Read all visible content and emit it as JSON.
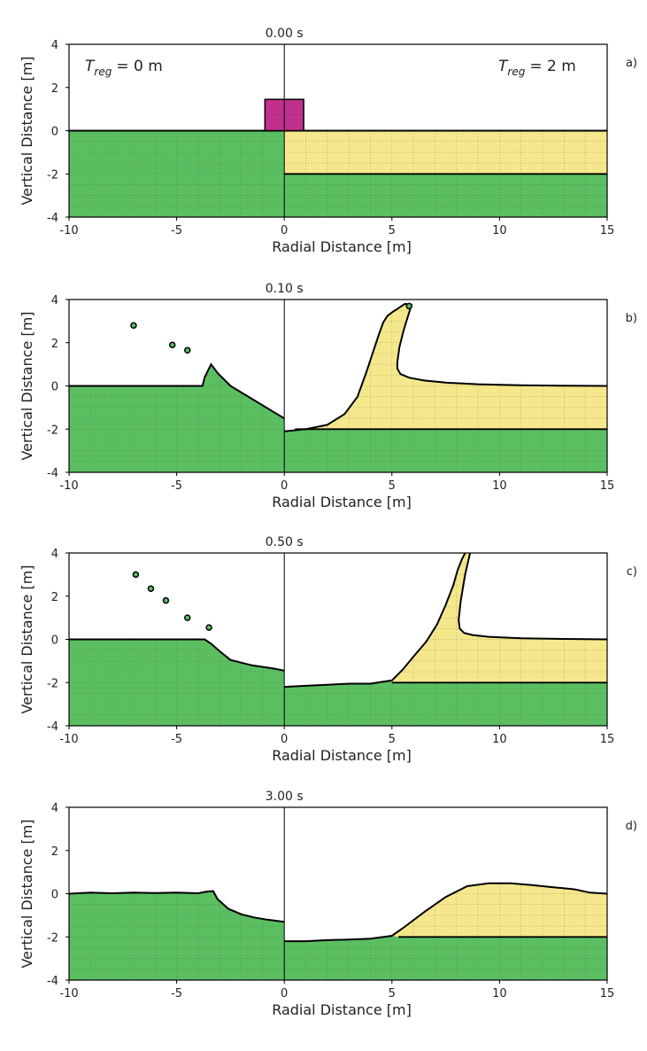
{
  "figure": {
    "colors": {
      "target": "#5bbf62",
      "regolith": "#f5e88c",
      "projectile": "#c0308e",
      "outline": "#000000",
      "grid": "#333333"
    },
    "annotations": {
      "left": {
        "symbol": "T",
        "subscript": "reg",
        "value": "= 0 m"
      },
      "right": {
        "symbol": "T",
        "subscript": "reg",
        "value": "= 2 m"
      }
    }
  },
  "chart_data": [
    {
      "type": "area",
      "panel_label": "a)",
      "title": "0.00 s",
      "xlabel": "Radial Distance [m]",
      "ylabel": "Vertical Distance [m]",
      "xlim": [
        -10,
        15
      ],
      "ylim": [
        -4,
        4
      ],
      "xticks": [
        -10,
        -5,
        0,
        5,
        10,
        15
      ],
      "yticks": [
        -4,
        -2,
        0,
        2,
        4
      ],
      "series": [
        {
          "name": "target",
          "x": [
            -10,
            0
          ],
          "y": [
            0,
            0
          ]
        },
        {
          "name": "regolith",
          "x": [
            0,
            15
          ],
          "y": [
            0,
            0
          ]
        },
        {
          "name": "regolith base",
          "x": [
            0,
            15
          ],
          "y": [
            -2,
            -2
          ]
        }
      ],
      "projectile": {
        "x": [
          -0.9,
          0.9
        ],
        "y": [
          0,
          1.45
        ]
      },
      "ejecta": []
    },
    {
      "type": "area",
      "panel_label": "b)",
      "title": "0.10 s",
      "xlabel": "Radial Distance [m]",
      "ylabel": "Vertical Distance [m]",
      "xlim": [
        -10,
        15
      ],
      "ylim": [
        -4,
        4
      ],
      "xticks": [
        -10,
        -5,
        0,
        5,
        10,
        15
      ],
      "yticks": [
        -4,
        -2,
        0,
        2,
        4
      ],
      "series": [
        {
          "name": "left surface",
          "x": [
            -10,
            -3.8,
            -3.7,
            -3.4,
            -3.1,
            -2.5,
            -1.5,
            -0.5,
            0
          ],
          "y": [
            0,
            0,
            0.4,
            1.0,
            0.6,
            0.0,
            -0.6,
            -1.2,
            -1.5
          ]
        },
        {
          "name": "right surface",
          "x": [
            0,
            0.5,
            1.0,
            2.0,
            2.8,
            3.4,
            3.8,
            4.1,
            4.4,
            4.6,
            4.8,
            5.0,
            5.3,
            5.6,
            5.9,
            5.8,
            5.55,
            5.35,
            5.25,
            5.25,
            5.4,
            5.8,
            6.5,
            7.5,
            9,
            11,
            13,
            15
          ],
          "y": [
            -2.1,
            -2.05,
            -2.0,
            -1.8,
            -1.3,
            -0.5,
            0.6,
            1.5,
            2.4,
            2.95,
            3.25,
            3.4,
            3.6,
            3.8,
            3.75,
            3.4,
            2.6,
            1.8,
            1.1,
            0.8,
            0.55,
            0.38,
            0.25,
            0.15,
            0.08,
            0.03,
            0.01,
            0.0
          ]
        },
        {
          "name": "regolith base",
          "x": [
            0.5,
            15
          ],
          "y": [
            -2,
            -2
          ]
        }
      ],
      "ejecta": [
        [
          -7,
          2.8
        ],
        [
          -5.2,
          1.9
        ],
        [
          -4.5,
          1.65
        ],
        [
          5.8,
          3.7
        ]
      ]
    },
    {
      "type": "area",
      "panel_label": "c)",
      "title": "0.50 s",
      "xlabel": "Radial Distance [m]",
      "ylabel": "Vertical Distance [m]",
      "xlim": [
        -10,
        15
      ],
      "ylim": [
        -4,
        4
      ],
      "xticks": [
        -10,
        -5,
        0,
        5,
        10,
        15
      ],
      "yticks": [
        -4,
        -2,
        0,
        2,
        4
      ],
      "series": [
        {
          "name": "left surface",
          "x": [
            -10,
            -3.7,
            -3.4,
            -3.0,
            -2.5,
            -1.5,
            -0.5,
            0
          ],
          "y": [
            0,
            0,
            -0.2,
            -0.55,
            -0.95,
            -1.2,
            -1.35,
            -1.45
          ]
        },
        {
          "name": "right surface",
          "x": [
            0,
            1,
            2,
            3,
            4,
            5,
            5.5,
            6.0,
            6.6,
            7.1,
            7.5,
            7.85,
            8.05,
            8.25,
            8.4,
            8.55,
            8.7,
            8.4,
            8.2,
            8.1,
            8.15,
            8.35,
            8.75,
            9.5,
            11,
            13,
            15
          ],
          "y": [
            -2.2,
            -2.15,
            -2.1,
            -2.05,
            -2.05,
            -1.9,
            -1.4,
            -0.8,
            -0.1,
            0.7,
            1.6,
            2.5,
            3.2,
            3.7,
            4.0,
            4.2,
            4.3,
            3.0,
            1.8,
            0.9,
            0.5,
            0.3,
            0.2,
            0.12,
            0.05,
            0.02,
            0.0
          ]
        },
        {
          "name": "regolith base",
          "x": [
            5,
            15
          ],
          "y": [
            -2,
            -2
          ]
        }
      ],
      "ejecta": [
        [
          -6.9,
          3.0
        ],
        [
          -6.2,
          2.35
        ],
        [
          -5.5,
          1.8
        ],
        [
          -4.5,
          1.0
        ],
        [
          -3.5,
          0.55
        ]
      ]
    },
    {
      "type": "area",
      "panel_label": "d)",
      "title": "3.00 s",
      "xlabel": "Radial Distance [m]",
      "ylabel": "Vertical Distance [m]",
      "xlim": [
        -10,
        15
      ],
      "ylim": [
        -4,
        4
      ],
      "xticks": [
        -10,
        -5,
        0,
        5,
        10,
        15
      ],
      "yticks": [
        -4,
        -2,
        0,
        2,
        4
      ],
      "series": [
        {
          "name": "left surface",
          "x": [
            -10,
            -9,
            -8,
            -7,
            -6,
            -5,
            -4,
            -3.6,
            -3.3,
            -3.1,
            -2.6,
            -2.0,
            -1.4,
            -0.8,
            0
          ],
          "y": [
            0,
            0.05,
            0.02,
            0.05,
            0.03,
            0.05,
            0.02,
            0.1,
            0.12,
            -0.25,
            -0.7,
            -0.95,
            -1.1,
            -1.2,
            -1.3
          ]
        },
        {
          "name": "right surface",
          "x": [
            0,
            1,
            2,
            3,
            4,
            5,
            5.5,
            6.5,
            7.5,
            8.5,
            9.5,
            10.5,
            11.5,
            12.5,
            13.5,
            14.2,
            15
          ],
          "y": [
            -2.2,
            -2.2,
            -2.15,
            -2.12,
            -2.08,
            -1.95,
            -1.6,
            -0.85,
            -0.15,
            0.35,
            0.48,
            0.48,
            0.4,
            0.3,
            0.2,
            0.05,
            0.0
          ]
        },
        {
          "name": "regolith base",
          "x": [
            5.3,
            15
          ],
          "y": [
            -2,
            -2
          ]
        }
      ],
      "ejecta": []
    }
  ]
}
